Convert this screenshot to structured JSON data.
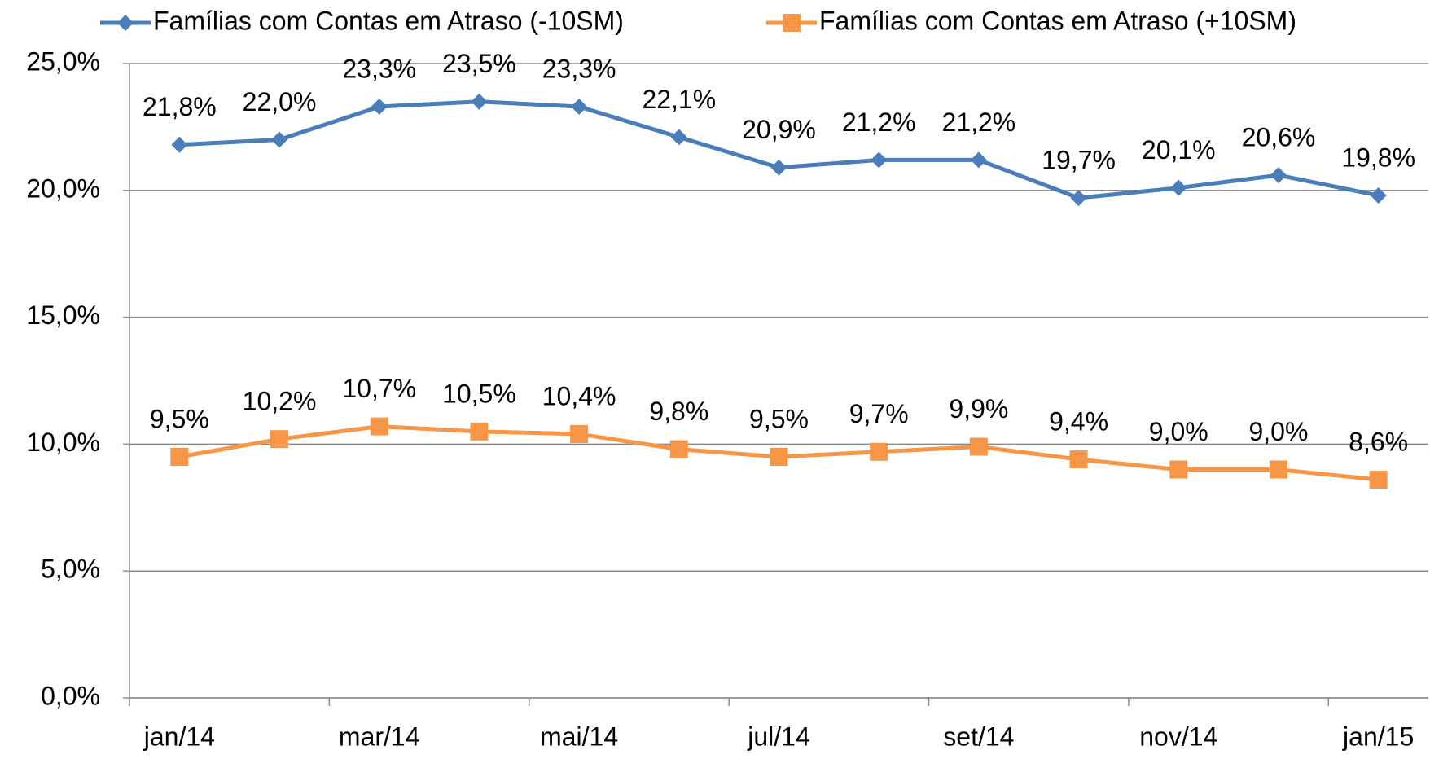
{
  "chart_data": {
    "type": "line",
    "categories": [
      "jan/14",
      null,
      "mar/14",
      null,
      "mai/14",
      null,
      "jul/14",
      null,
      "set/14",
      null,
      "nov/14",
      null,
      "jan/15"
    ],
    "series": [
      {
        "name": "Famílias com Contas em Atraso (-10SM)",
        "color": "#4a7ebb",
        "marker": "diamond",
        "values": [
          21.8,
          22.0,
          23.3,
          23.5,
          23.3,
          22.1,
          20.9,
          21.2,
          21.2,
          19.7,
          20.1,
          20.6,
          19.8
        ],
        "value_labels": [
          "21,8%",
          "22,0%",
          "23,3%",
          "23,5%",
          "23,3%",
          "22,1%",
          "20,9%",
          "21,2%",
          "21,2%",
          "19,7%",
          "20,1%",
          "20,6%",
          "19,8%"
        ]
      },
      {
        "name": "Famílias com Contas em Atraso (+10SM)",
        "color": "#f79646",
        "marker": "square",
        "values": [
          9.5,
          10.2,
          10.7,
          10.5,
          10.4,
          9.8,
          9.5,
          9.7,
          9.9,
          9.4,
          9.0,
          9.0,
          8.6
        ],
        "value_labels": [
          "9,5%",
          "10,2%",
          "10,7%",
          "10,5%",
          "10,4%",
          "9,8%",
          "9,5%",
          "9,7%",
          "9,9%",
          "9,4%",
          "9,0%",
          "9,0%",
          "8,6%"
        ]
      }
    ],
    "ylim": [
      0,
      25
    ],
    "yticks": [
      {
        "value": 0,
        "label": "0,0%"
      },
      {
        "value": 5,
        "label": "5,0%"
      },
      {
        "value": 10,
        "label": "10,0%"
      },
      {
        "value": 15,
        "label": "15,0%"
      },
      {
        "value": 20,
        "label": "20,0%"
      },
      {
        "value": 25,
        "label": "25,0%"
      }
    ],
    "grid": true,
    "legend": "top"
  }
}
